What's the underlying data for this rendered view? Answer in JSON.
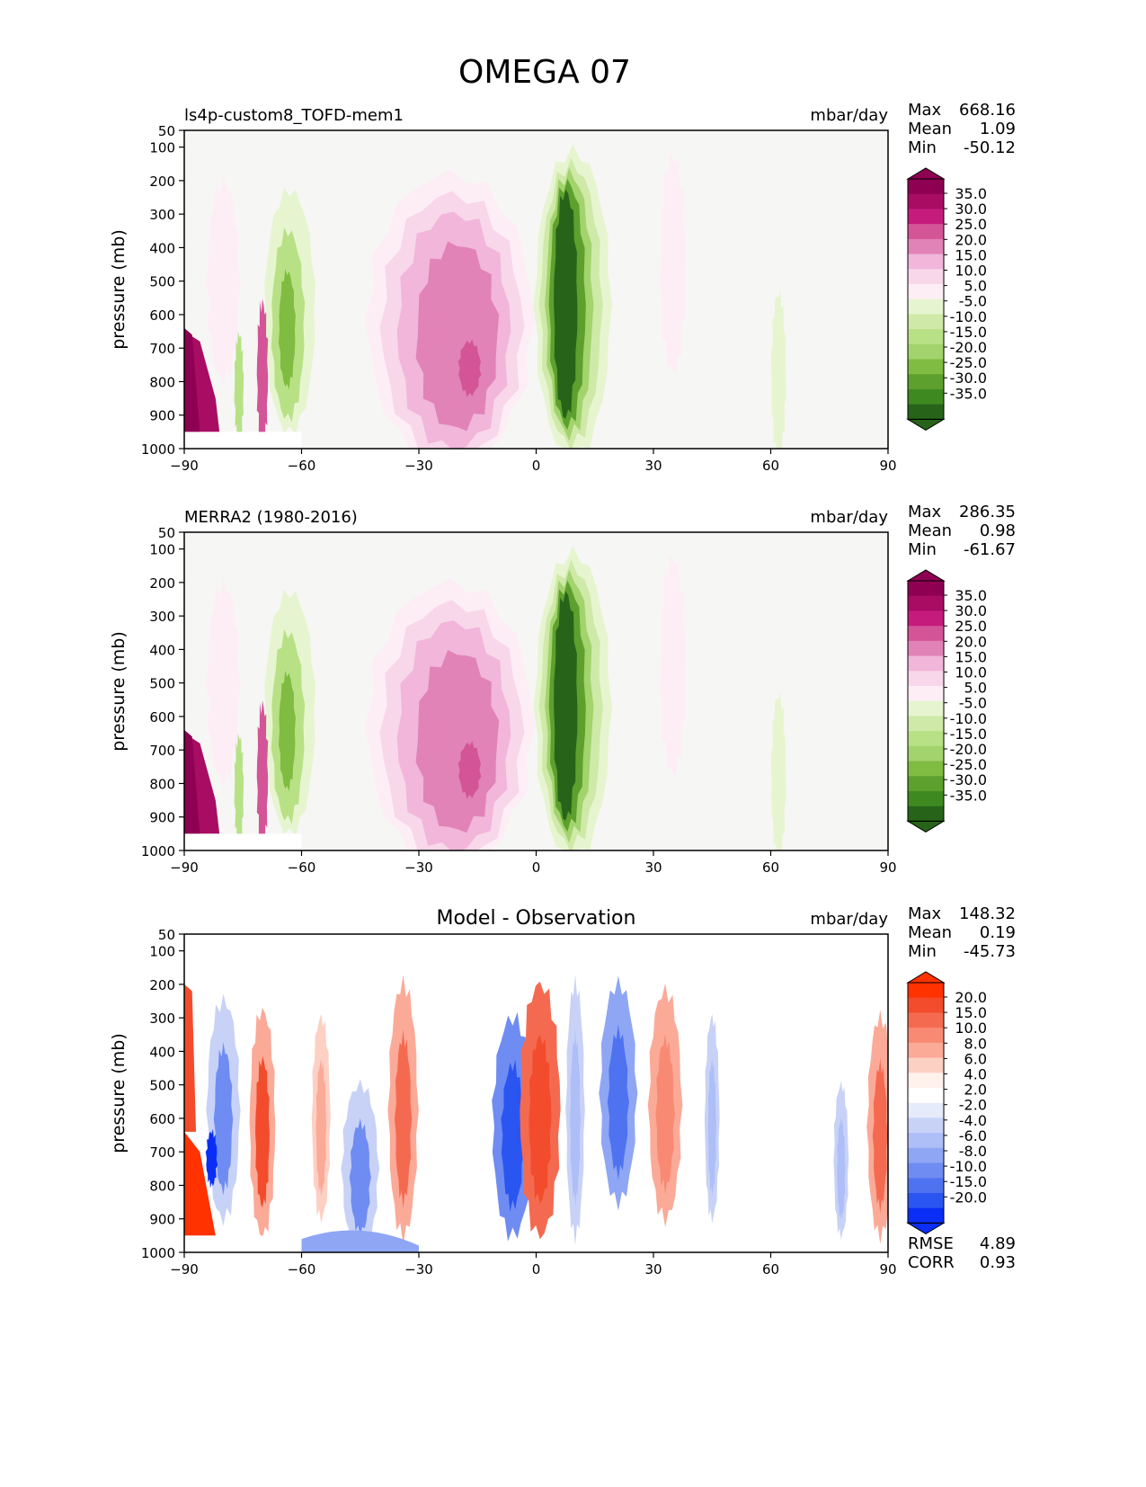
{
  "figure_title": "OMEGA 07",
  "colors": {
    "fill": {
      "pos_lo": "#f7dff0",
      "pos_mid": "#e58fc1",
      "pos_hi": "#c5308a",
      "neg_lo": "#e4f2d2",
      "neg_mid": "#9fd06a",
      "neg_hi": "#2d6e1f",
      "diff_pos": "#f24a2e",
      "diff_pos_lo": "#fbc2b0",
      "diff_neg": "#3b63f0",
      "diff_neg_lo": "#c7d2f7",
      "bg": "#f6f6f5"
    },
    "diff": [
      "#ff3200",
      "#f24c2c",
      "#f46a50",
      "#f88a74",
      "#fbaa98",
      "#fdd0c4",
      "#fff1ec",
      "#ffffff",
      "#e6ebfb",
      "#c8d2f7",
      "#aebef6",
      "#8ea6f4",
      "#6f8cf2",
      "#4f72f0",
      "#2b55f0",
      "#0a2ef5"
    ],
    "omega": [
      "#8e0152",
      "#a80d63",
      "#c51b7d",
      "#d45498",
      "#e183b6",
      "#f1b6da",
      "#f8d7ea",
      "#fdeef6",
      "#f7f7f7",
      "#e6f5d0",
      "#cfe9a8",
      "#b8e186",
      "#a2d36d",
      "#7fbc41",
      "#5da02e",
      "#3f8a20",
      "#276419"
    ]
  },
  "chart_data": [
    {
      "type": "contour",
      "title": "ls4p-custom8_TOFD-mem1",
      "units": "mbar/day",
      "ylabel": "pressure (mb)",
      "xlabel": "",
      "xlim": [
        -90,
        90
      ],
      "ylim": [
        1000,
        50
      ],
      "x_ticks": [
        "−90",
        "−60",
        "−30",
        "0",
        "30",
        "60",
        "90"
      ],
      "y_ticks": [
        "50",
        "100",
        "200",
        "300",
        "400",
        "500",
        "600",
        "700",
        "800",
        "900",
        "1000"
      ],
      "stats": [
        {
          "label": "Max",
          "value": "668.16"
        },
        {
          "label": "Mean",
          "value": "1.09"
        },
        {
          "label": "Min",
          "value": "-50.12"
        }
      ],
      "colorbar": {
        "ticks": [
          "35.0",
          "30.0",
          "25.0",
          "20.0",
          "15.0",
          "10.0",
          "5.0",
          "-5.0",
          "-10.0",
          "-15.0",
          "-20.0",
          "-25.0",
          "-30.0",
          "-35.0"
        ]
      },
      "features": [
        {
          "kind": "descent",
          "lat": -20,
          "p_top": 150,
          "p_bot": 1000,
          "peak": 30
        },
        {
          "kind": "ascent",
          "lat": 8,
          "p_top": 130,
          "p_bot": 1000,
          "peak": -35
        },
        {
          "kind": "ascent",
          "lat": -63,
          "p_top": 230,
          "p_bot": 950,
          "peak": -20
        },
        {
          "kind": "descent",
          "lat": -85,
          "p_top": 650,
          "p_bot": 950,
          "peak": 35
        }
      ],
      "bottom_stats": []
    },
    {
      "type": "contour",
      "title": "MERRA2 (1980-2016)",
      "units": "mbar/day",
      "ylabel": "pressure (mb)",
      "xlabel": "",
      "xlim": [
        -90,
        90
      ],
      "ylim": [
        1000,
        50
      ],
      "x_ticks": [
        "−90",
        "−60",
        "−30",
        "0",
        "30",
        "60",
        "90"
      ],
      "y_ticks": [
        "50",
        "100",
        "200",
        "300",
        "400",
        "500",
        "600",
        "700",
        "800",
        "900",
        "1000"
      ],
      "stats": [
        {
          "label": "Max",
          "value": "286.35"
        },
        {
          "label": "Mean",
          "value": "0.98"
        },
        {
          "label": "Min",
          "value": "-61.67"
        }
      ],
      "colorbar": {
        "ticks": [
          "35.0",
          "30.0",
          "25.0",
          "20.0",
          "15.0",
          "10.0",
          "5.0",
          "-5.0",
          "-10.0",
          "-15.0",
          "-20.0",
          "-25.0",
          "-30.0",
          "-35.0"
        ]
      },
      "features": [
        {
          "kind": "descent",
          "lat": -20,
          "p_top": 160,
          "p_bot": 1000,
          "peak": 30
        },
        {
          "kind": "ascent",
          "lat": 8,
          "p_top": 140,
          "p_bot": 1000,
          "peak": -35
        },
        {
          "kind": "ascent",
          "lat": -65,
          "p_top": 200,
          "p_bot": 950,
          "peak": -20
        },
        {
          "kind": "descent",
          "lat": -82,
          "p_top": 600,
          "p_bot": 1000,
          "peak": 35
        }
      ],
      "bottom_stats": []
    },
    {
      "type": "contour",
      "title": "Model - Observation",
      "title_centered": true,
      "units": "mbar/day",
      "ylabel": "pressure (mb)",
      "xlabel": "",
      "xlim": [
        -90,
        90
      ],
      "ylim": [
        1000,
        50
      ],
      "x_ticks": [
        "−90",
        "−60",
        "−30",
        "0",
        "30",
        "60",
        "90"
      ],
      "y_ticks": [
        "50",
        "100",
        "200",
        "300",
        "400",
        "500",
        "600",
        "700",
        "800",
        "900",
        "1000"
      ],
      "stats": [
        {
          "label": "Max",
          "value": "148.32"
        },
        {
          "label": "Mean",
          "value": "0.19"
        },
        {
          "label": "Min",
          "value": "-45.73"
        }
      ],
      "colorbar": {
        "ticks": [
          "20.0",
          "15.0",
          "10.0",
          "8.0",
          "6.0",
          "4.0",
          "2.0",
          "-2.0",
          "-4.0",
          "-6.0",
          "-8.0",
          "-10.0",
          "-15.0",
          "-20.0"
        ]
      },
      "features": [
        {
          "kind": "positive",
          "lat": 0,
          "p_top": 200,
          "p_bot": 950,
          "peak": 10
        },
        {
          "kind": "negative",
          "lat": -8,
          "p_top": 280,
          "p_bot": 950,
          "peak": -10
        },
        {
          "kind": "negative",
          "lat": 20,
          "p_top": 200,
          "p_bot": 850,
          "peak": -6
        },
        {
          "kind": "positive",
          "lat": 32,
          "p_top": 220,
          "p_bot": 900,
          "peak": 6
        }
      ],
      "bottom_stats": [
        {
          "label": "RMSE",
          "value": "4.89"
        },
        {
          "label": "CORR",
          "value": "0.93"
        }
      ]
    }
  ]
}
